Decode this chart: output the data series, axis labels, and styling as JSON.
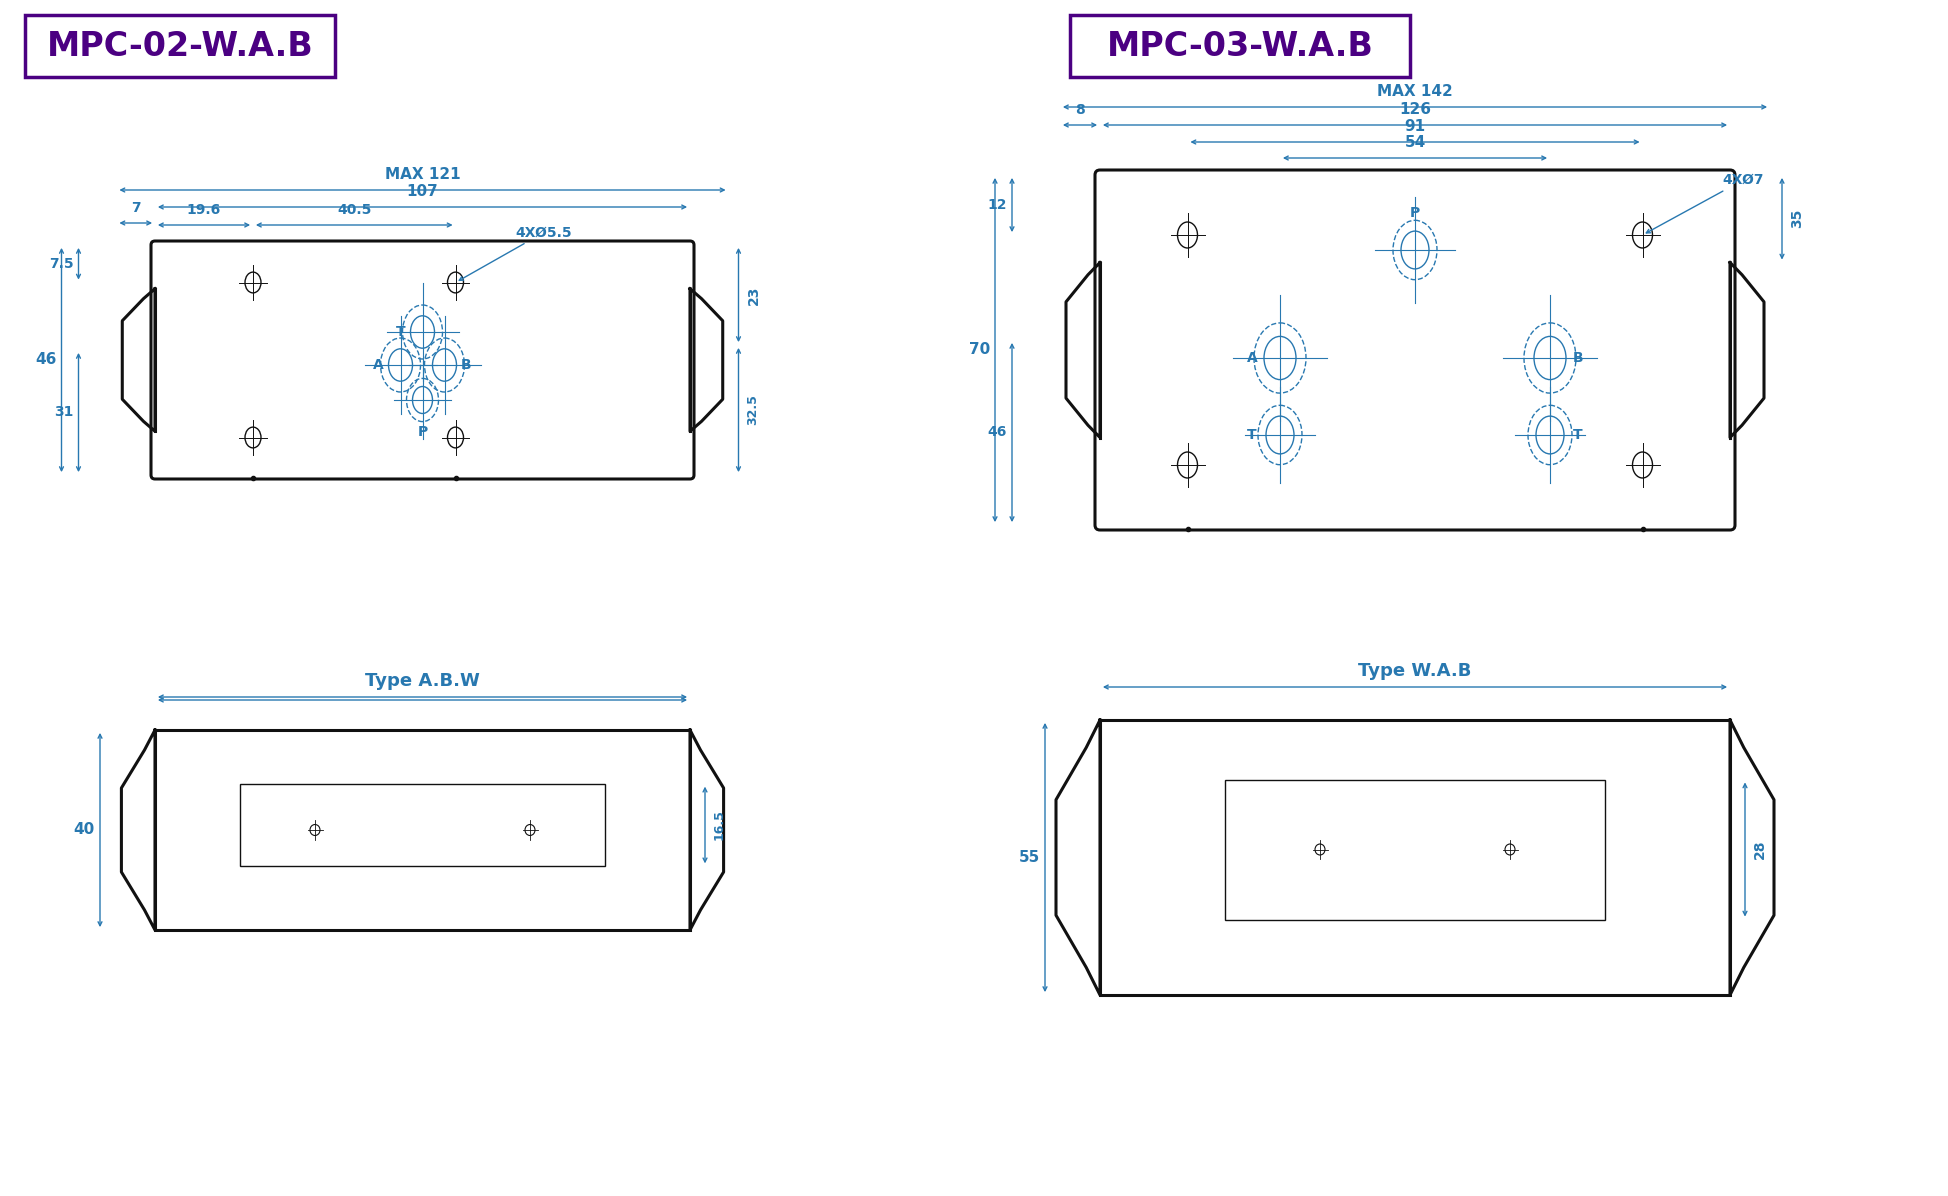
{
  "bg_color": "#ffffff",
  "title_color": "#4b0082",
  "dim_color": "#2878b0",
  "line_color": "#111111",
  "title1": "MPC-02-W.A.B",
  "title2": "MPC-03-W.A.B",
  "subtitle1": "Type A.B.W",
  "subtitle2": "Type W.A.B"
}
